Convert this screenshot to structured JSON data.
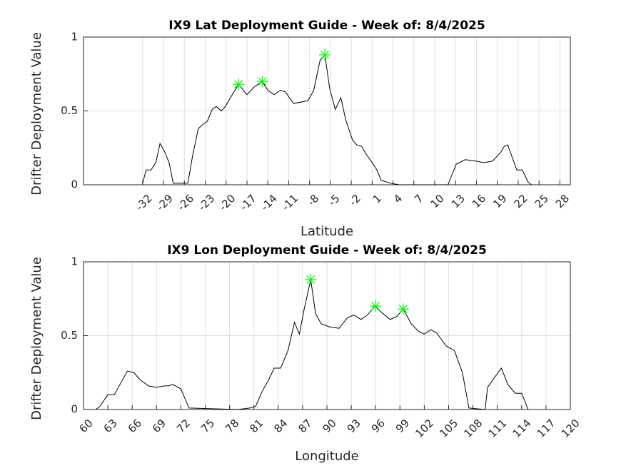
{
  "chart_data": [
    {
      "type": "line",
      "title": "IX9 Lat Deployment Guide - Week of: 8/4/2025",
      "xlabel": "Latitude",
      "ylabel": "Drifter Deployment Value",
      "xlim": [
        -40.5,
        29.5
      ],
      "xticks": [
        -32,
        -29,
        -26,
        -23,
        -20,
        -17,
        -14,
        -11,
        -8,
        -5,
        -2,
        1,
        4,
        7,
        10,
        13,
        16,
        19,
        22,
        25,
        28
      ],
      "ylim": [
        0,
        1
      ],
      "yticks": [
        0,
        0.5,
        1
      ],
      "grid": true,
      "series": [
        {
          "color": "#000000",
          "marker": "none",
          "x": [
            -32,
            -31.5,
            -30.8,
            -30.1,
            -29.5,
            -28.8,
            -28.2,
            -27.6,
            -25.5,
            -24.8,
            -24,
            -23.3,
            -22.7,
            -22,
            -21.4,
            -20.7,
            -20.1,
            -19.5,
            -18.2,
            -17,
            -16,
            -14.8,
            -14,
            -13.1,
            -12.2,
            -11.5,
            -10.3,
            -8.2,
            -7.4,
            -6.5,
            -5.8,
            -5.1,
            -4.3,
            -3.5,
            -2.8,
            -1.8,
            -1.2,
            -0.5,
            0.1,
            1,
            1.7,
            2.3,
            3.7,
            4.9,
            11.1,
            11.9,
            13.1,
            14.4,
            16,
            17,
            18.3,
            19.5,
            20,
            20.5,
            21.8,
            22.6,
            23.4,
            23.9
          ],
          "values": [
            0.01,
            0.1,
            0.1,
            0.15,
            0.28,
            0.22,
            0.15,
            0.01,
            0.01,
            0.2,
            0.38,
            0.41,
            0.43,
            0.51,
            0.53,
            0.5,
            0.53,
            0.58,
            0.68,
            0.61,
            0.66,
            0.7,
            0.64,
            0.61,
            0.64,
            0.63,
            0.55,
            0.57,
            0.64,
            0.84,
            0.88,
            0.65,
            0.51,
            0.59,
            0.44,
            0.3,
            0.27,
            0.26,
            0.21,
            0.15,
            0.1,
            0.03,
            0.01,
            0,
            0,
            0,
            0.14,
            0.17,
            0.16,
            0.15,
            0.16,
            0.22,
            0.26,
            0.27,
            0.1,
            0.1,
            0.02,
            0
          ]
        },
        {
          "color": "#00ff00",
          "marker": "asterisk",
          "x": [
            -18.2,
            -14.8,
            -5.8
          ],
          "values": [
            0.68,
            0.7,
            0.88
          ]
        }
      ]
    },
    {
      "type": "line",
      "title": "IX9 Lon Deployment Guide - Week of: 8/4/2025",
      "xlabel": "Longitude",
      "ylabel": "Drifter Deployment Value",
      "xlim": [
        60,
        120
      ],
      "xticks": [
        60,
        63,
        66,
        69,
        72,
        75,
        78,
        81,
        84,
        87,
        90,
        93,
        96,
        99,
        102,
        105,
        108,
        111,
        114,
        117,
        120
      ],
      "ylim": [
        0,
        1
      ],
      "yticks": [
        0,
        0.5,
        1
      ],
      "grid": true,
      "series": [
        {
          "color": "#000000",
          "marker": "none",
          "x": [
            61.5,
            62,
            63,
            63.8,
            64.5,
            65.4,
            66.2,
            67,
            68,
            69,
            70,
            70.5,
            71,
            72,
            73,
            79,
            80.5,
            81.2,
            82,
            82.8,
            83.5,
            84.3,
            85.2,
            86,
            86.6,
            87.2,
            88,
            88.6,
            89.3,
            90.3,
            91.5,
            92.5,
            93.3,
            94.2,
            95,
            95.9,
            96.9,
            97.8,
            98.6,
            99.4,
            100.4,
            101.3,
            102,
            102.8,
            103.5,
            104.7,
            105.7,
            106.7,
            107.5,
            109.5,
            109.8,
            110.7,
            111.5,
            112.3,
            113.2,
            114,
            114.8
          ],
          "values": [
            0,
            0.02,
            0.1,
            0.1,
            0.17,
            0.26,
            0.25,
            0.2,
            0.16,
            0.15,
            0.16,
            0.16,
            0.17,
            0.14,
            0.01,
            0,
            0.01,
            0.02,
            0.12,
            0.2,
            0.28,
            0.28,
            0.4,
            0.59,
            0.51,
            0.68,
            0.88,
            0.65,
            0.58,
            0.56,
            0.55,
            0.62,
            0.64,
            0.61,
            0.64,
            0.7,
            0.65,
            0.61,
            0.63,
            0.68,
            0.58,
            0.53,
            0.51,
            0.54,
            0.52,
            0.43,
            0.4,
            0.25,
            0.01,
            0,
            0.15,
            0.22,
            0.28,
            0.17,
            0.11,
            0.11,
            0
          ]
        },
        {
          "color": "#00ff00",
          "marker": "asterisk",
          "x": [
            88,
            96,
            99.4
          ],
          "values": [
            0.88,
            0.7,
            0.68
          ]
        }
      ]
    }
  ]
}
